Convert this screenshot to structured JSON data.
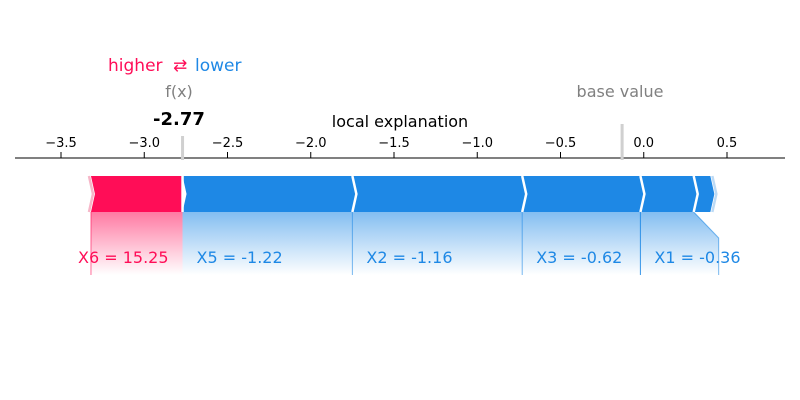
{
  "legend": {
    "higher_label": "higher",
    "arrow_glyph": "⇄",
    "lower_label": "lower",
    "higher_color": "#ff0d57",
    "lower_color": "#1e88e5"
  },
  "chart_data": {
    "type": "force",
    "title": "local explanation",
    "output_name": "f(x)",
    "output_value": -2.77,
    "output_value_label": "-2.77",
    "base_value_label": "base value",
    "base_value": -0.13,
    "xlim": [
      -3.8,
      0.85
    ],
    "ticks": [
      -3.5,
      -3.0,
      -2.5,
      -2.0,
      -1.5,
      -1.0,
      -0.5,
      0.0,
      0.5
    ],
    "tick_labels": [
      "−3.5",
      "−3.0",
      "−2.5",
      "−2.0",
      "−1.5",
      "−1.0",
      "−0.5",
      "0.0",
      "0.5"
    ],
    "positive_color": "#ff0d57",
    "negative_color": "#1e88e5",
    "features": [
      {
        "label": "X6 = 15.25",
        "effect": "positive",
        "start": -3.32,
        "end": -2.77
      },
      {
        "label": "X5 = -1.22",
        "effect": "negative",
        "start": -2.77,
        "end": -1.75
      },
      {
        "label": "X2 = -1.16",
        "effect": "negative",
        "start": -1.75,
        "end": -0.73
      },
      {
        "label": "X3 = -0.62",
        "effect": "negative",
        "start": -0.73,
        "end": -0.02
      },
      {
        "label": "X1 = -0.36",
        "effect": "negative",
        "start": -0.02,
        "end": 0.3
      },
      {
        "label": "",
        "effect": "negative",
        "start": 0.3,
        "end": 0.4
      }
    ]
  }
}
